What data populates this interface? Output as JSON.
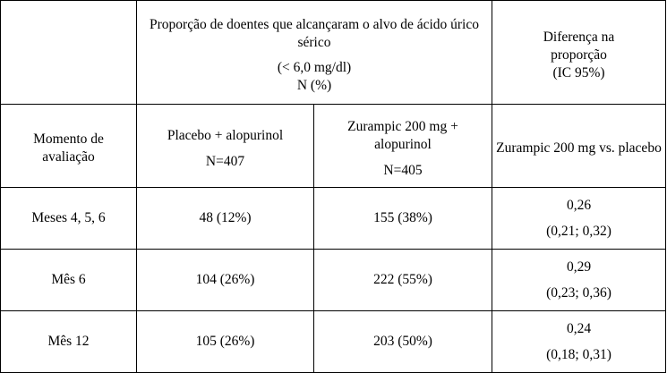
{
  "header": {
    "corner": "",
    "group_line1": "Proporção de doentes que alcançaram o alvo de ácido úrico sérico",
    "group_line2": "(< 6,0 mg/dl)",
    "group_line3": "N (%)",
    "diff_title": "Diferença na proporção",
    "diff_ci": "(IC 95%)"
  },
  "subheader": {
    "col1": "Momento de avaliação",
    "col2_name": "Placebo + alopurinol",
    "col2_n": "N=407",
    "col3_name": "Zurampic 200 mg + alopurinol",
    "col3_n": "N=405",
    "col4": "Zurampic 200 mg vs. placebo"
  },
  "rows": [
    {
      "timepoint": "Meses 4, 5, 6",
      "placebo": "48 (12%)",
      "zurampic": "155 (38%)",
      "diff": "0,26",
      "ci": "(0,21; 0,32)"
    },
    {
      "timepoint": "Mês 6",
      "placebo": "104 (26%)",
      "zurampic": "222 (55%)",
      "diff": "0,29",
      "ci": "(0,23; 0,36)"
    },
    {
      "timepoint": "Mês 12",
      "placebo": "105 (26%)",
      "zurampic": "203 (50%)",
      "diff": "0,24",
      "ci": "(0,18; 0,31)"
    }
  ]
}
